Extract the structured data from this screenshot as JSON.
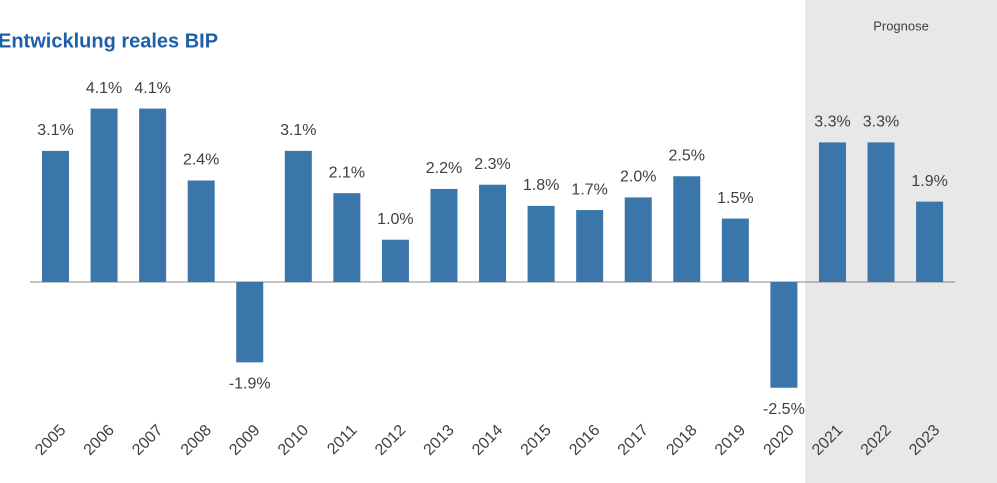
{
  "chart_data": {
    "type": "bar",
    "title": "Entwicklung reales BIP",
    "categories": [
      "2005",
      "2006",
      "2007",
      "2008",
      "2009",
      "2010",
      "2011",
      "2012",
      "2013",
      "2014",
      "2015",
      "2016",
      "2017",
      "2018",
      "2019",
      "2020",
      "2021",
      "2022",
      "2023"
    ],
    "values": [
      3.1,
      4.1,
      4.1,
      2.4,
      -1.9,
      3.1,
      2.1,
      1.0,
      2.2,
      2.3,
      1.8,
      1.7,
      2.0,
      2.5,
      1.5,
      -2.5,
      3.3,
      3.3,
      1.9
    ],
    "value_labels": [
      "3.1%",
      "4.1%",
      "4.1%",
      "2.4%",
      "-1.9%",
      "3.1%",
      "2.1%",
      "1.0%",
      "2.2%",
      "2.3%",
      "1.8%",
      "1.7%",
      "2.0%",
      "2.5%",
      "1.5%",
      "-2.5%",
      "3.3%",
      "3.3%",
      "1.9%"
    ],
    "color": "#3a76aa",
    "annotations": [
      {
        "text": "Prognose",
        "from": "2021",
        "to": "2023"
      }
    ]
  }
}
